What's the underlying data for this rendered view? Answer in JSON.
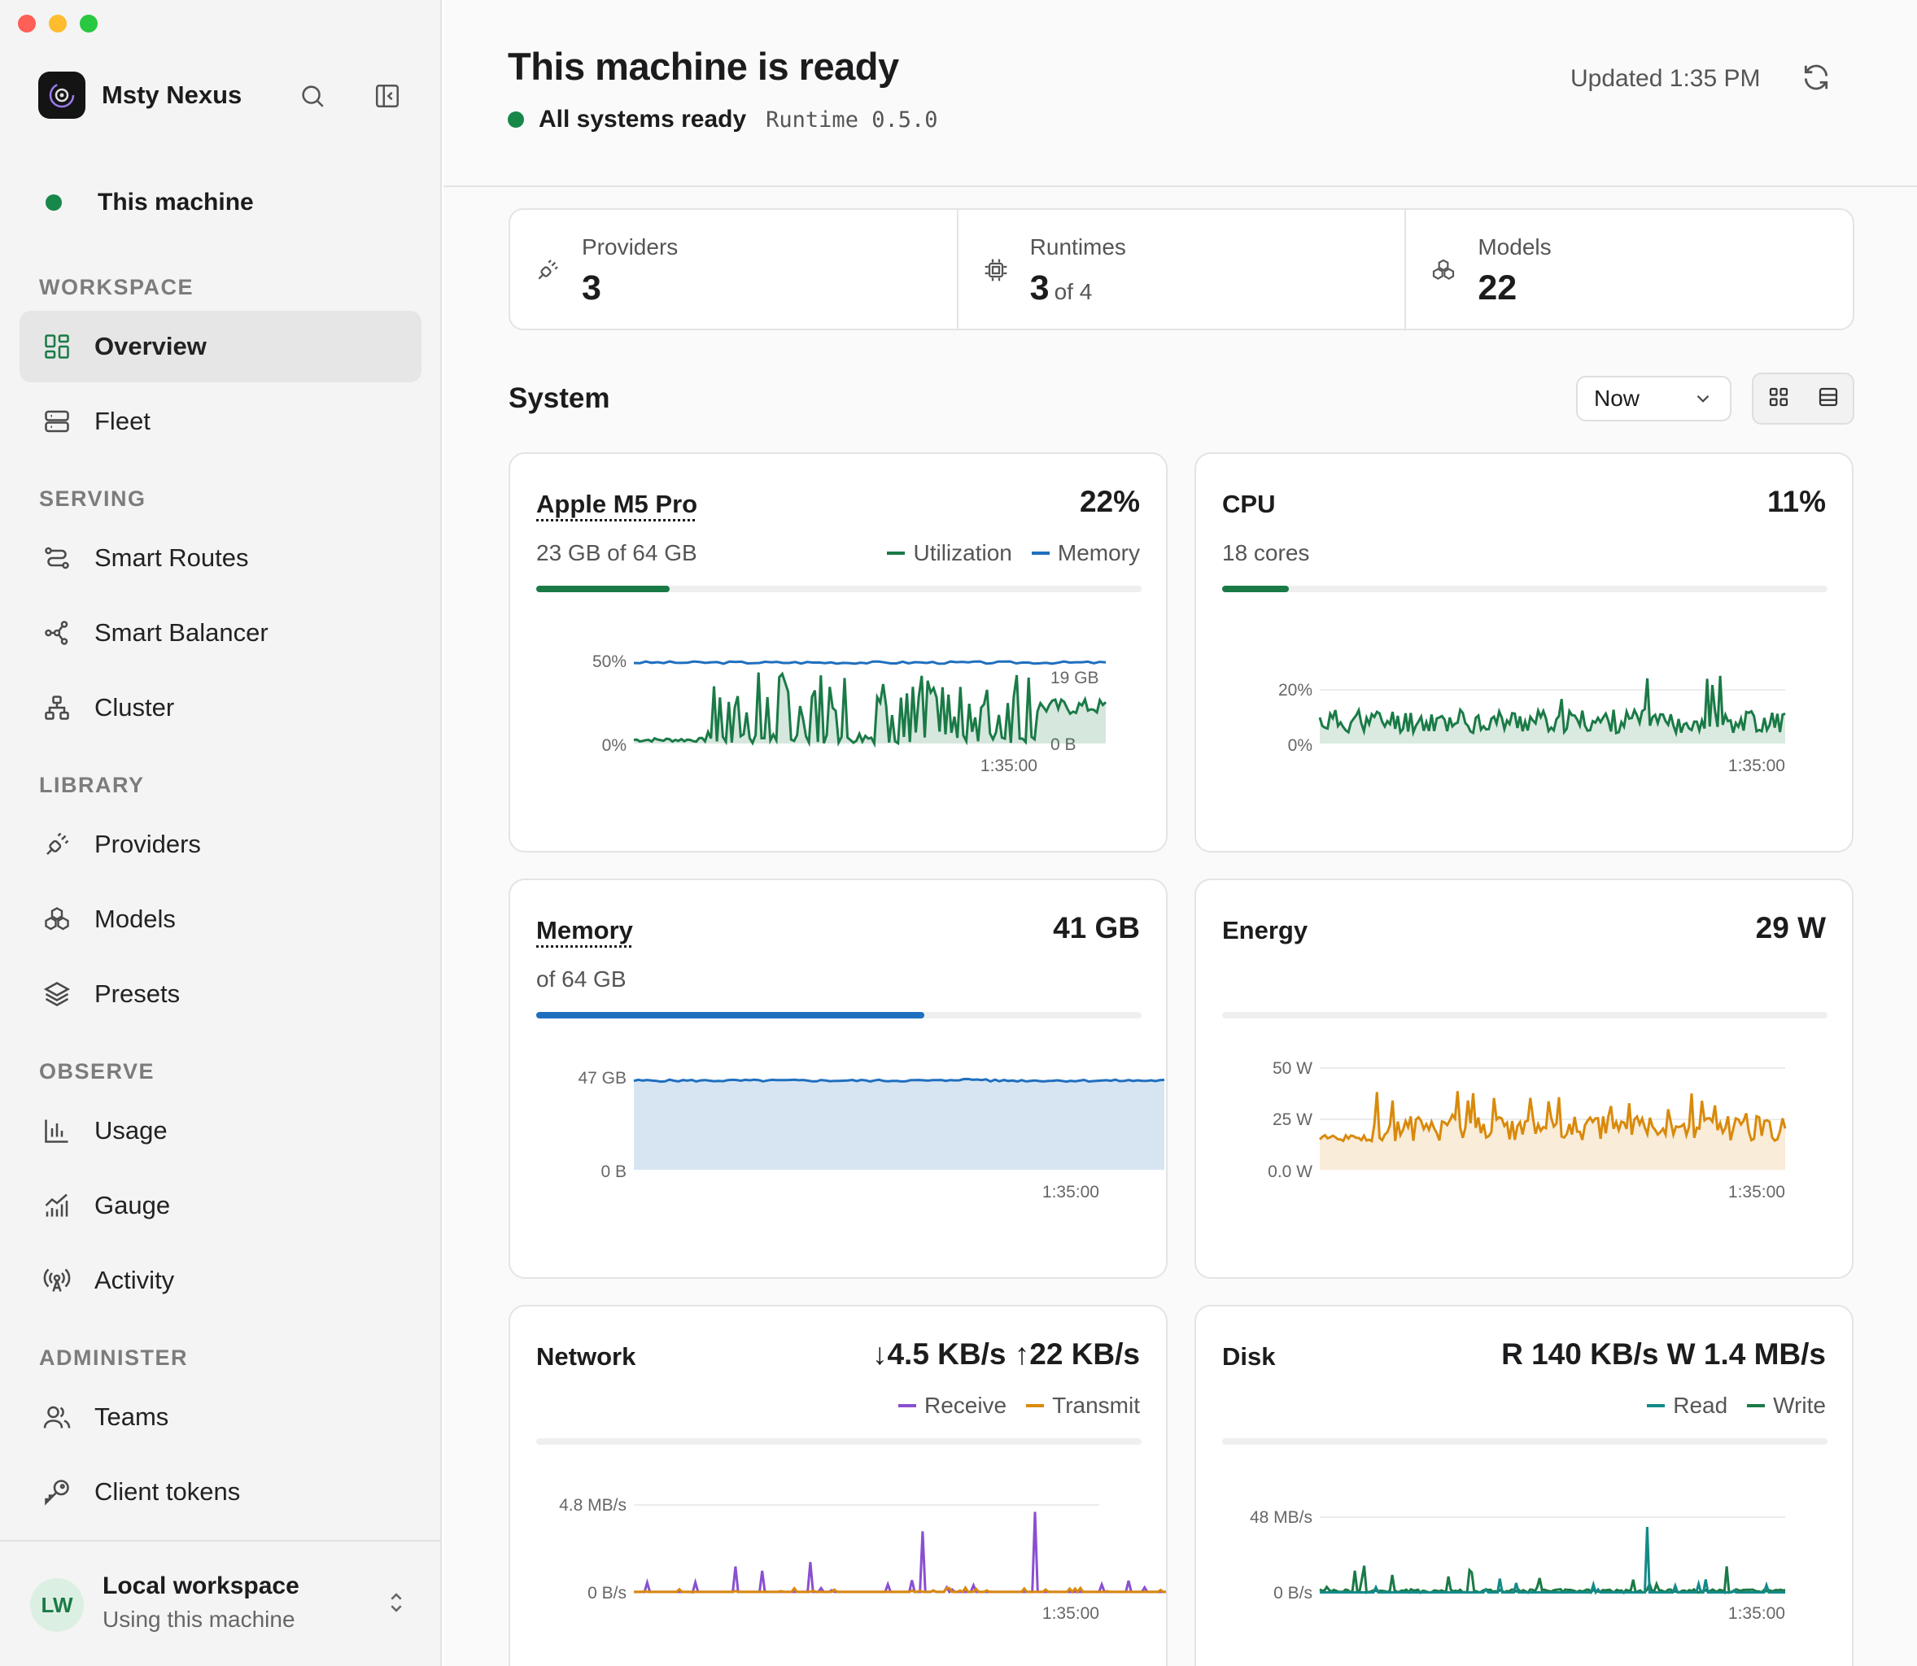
{
  "sidebar": {
    "brand": "Msty Nexus",
    "machine": "This machine",
    "sections": {
      "workspace": "WORKSPACE",
      "serving": "SERVING",
      "library": "LIBRARY",
      "observe": "OBSERVE",
      "administer": "ADMINISTER"
    },
    "items": [
      {
        "label": "Overview",
        "icon": "grid-icon",
        "active": true
      },
      {
        "label": "Fleet",
        "icon": "server-icon"
      },
      {
        "label": "Smart Routes",
        "icon": "routes-icon"
      },
      {
        "label": "Smart Balancer",
        "icon": "balancer-icon"
      },
      {
        "label": "Cluster",
        "icon": "cluster-icon"
      },
      {
        "label": "Providers",
        "icon": "plug-icon"
      },
      {
        "label": "Models",
        "icon": "cubes-icon"
      },
      {
        "label": "Presets",
        "icon": "layers-icon"
      },
      {
        "label": "Usage",
        "icon": "bar-chart-icon"
      },
      {
        "label": "Gauge",
        "icon": "gauge-icon"
      },
      {
        "label": "Activity",
        "icon": "antenna-icon"
      },
      {
        "label": "Teams",
        "icon": "users-icon"
      },
      {
        "label": "Client tokens",
        "icon": "key-icon"
      }
    ],
    "workspace": {
      "initials": "LW",
      "title": "Local workspace",
      "subtitle": "Using this machine"
    }
  },
  "header": {
    "title": "This machine is ready",
    "status": "All systems ready",
    "runtime": "Runtime 0.5.0",
    "updated": "Updated 1:35 PM"
  },
  "summary": [
    {
      "label": "Providers",
      "value": "3",
      "suffix": ""
    },
    {
      "label": "Runtimes",
      "value": "3",
      "suffix": "of 4"
    },
    {
      "label": "Models",
      "value": "22",
      "suffix": ""
    }
  ],
  "system": {
    "title": "System",
    "range": "Now"
  },
  "colors": {
    "green": "#1a7a46",
    "blue": "#1f6fbf",
    "orange": "#d98a0b",
    "purple": "#8a4fd0",
    "teal": "#138a8a"
  },
  "cards": {
    "gpu": {
      "title": "Apple M5 Pro",
      "value": "22%",
      "sub": "23 GB of 64 GB",
      "legend": [
        "Utilization",
        "Memory"
      ],
      "utilization": 0.22
    },
    "cpu": {
      "title": "CPU",
      "value": "11%",
      "sub": "18 cores",
      "utilization": 0.11
    },
    "memory": {
      "title": "Memory",
      "value": "41 GB",
      "sub": "of 64 GB",
      "used_gb": 41,
      "total_gb": 64
    },
    "energy": {
      "title": "Energy",
      "value": "29 W"
    },
    "network": {
      "title": "Network",
      "value": "↓4.5 KB/s ↑22 KB/s",
      "legend": [
        "Receive",
        "Transmit"
      ]
    },
    "disk": {
      "title": "Disk",
      "value": "R 140 KB/s W 1.4 MB/s",
      "legend": [
        "Read",
        "Write"
      ]
    }
  },
  "chart_data": [
    {
      "type": "line",
      "title": "Apple M5 Pro",
      "series": [
        {
          "name": "Utilization"
        },
        {
          "name": "Memory"
        }
      ],
      "y_left_ticks": [
        "50%",
        "0%"
      ],
      "y_right_ticks": [
        "19 GB",
        "0 B"
      ],
      "x_ticks": [
        "1:35:00"
      ]
    },
    {
      "type": "area",
      "title": "CPU",
      "y_ticks": [
        "20%",
        "0%"
      ],
      "x_ticks": [
        "1:35:00"
      ]
    },
    {
      "type": "area",
      "title": "Memory",
      "y_ticks": [
        "47 GB",
        "0 B"
      ],
      "x_ticks": [
        "1:35:00"
      ],
      "ylim": [
        0,
        47
      ]
    },
    {
      "type": "area",
      "title": "Energy",
      "y_ticks": [
        "50 W",
        "25 W",
        "0.0 W"
      ],
      "x_ticks": [
        "1:35:00"
      ],
      "ylim": [
        0,
        50
      ]
    },
    {
      "type": "line",
      "title": "Network",
      "series": [
        {
          "name": "Receive"
        },
        {
          "name": "Transmit"
        }
      ],
      "y_ticks": [
        "4.8 MB/s",
        "0 B/s"
      ],
      "x_ticks": [
        "1:35:00"
      ]
    },
    {
      "type": "line",
      "title": "Disk",
      "series": [
        {
          "name": "Read"
        },
        {
          "name": "Write"
        }
      ],
      "y_ticks": [
        "48 MB/s",
        "0 B/s"
      ],
      "x_ticks": [
        "1:35:00"
      ]
    }
  ]
}
